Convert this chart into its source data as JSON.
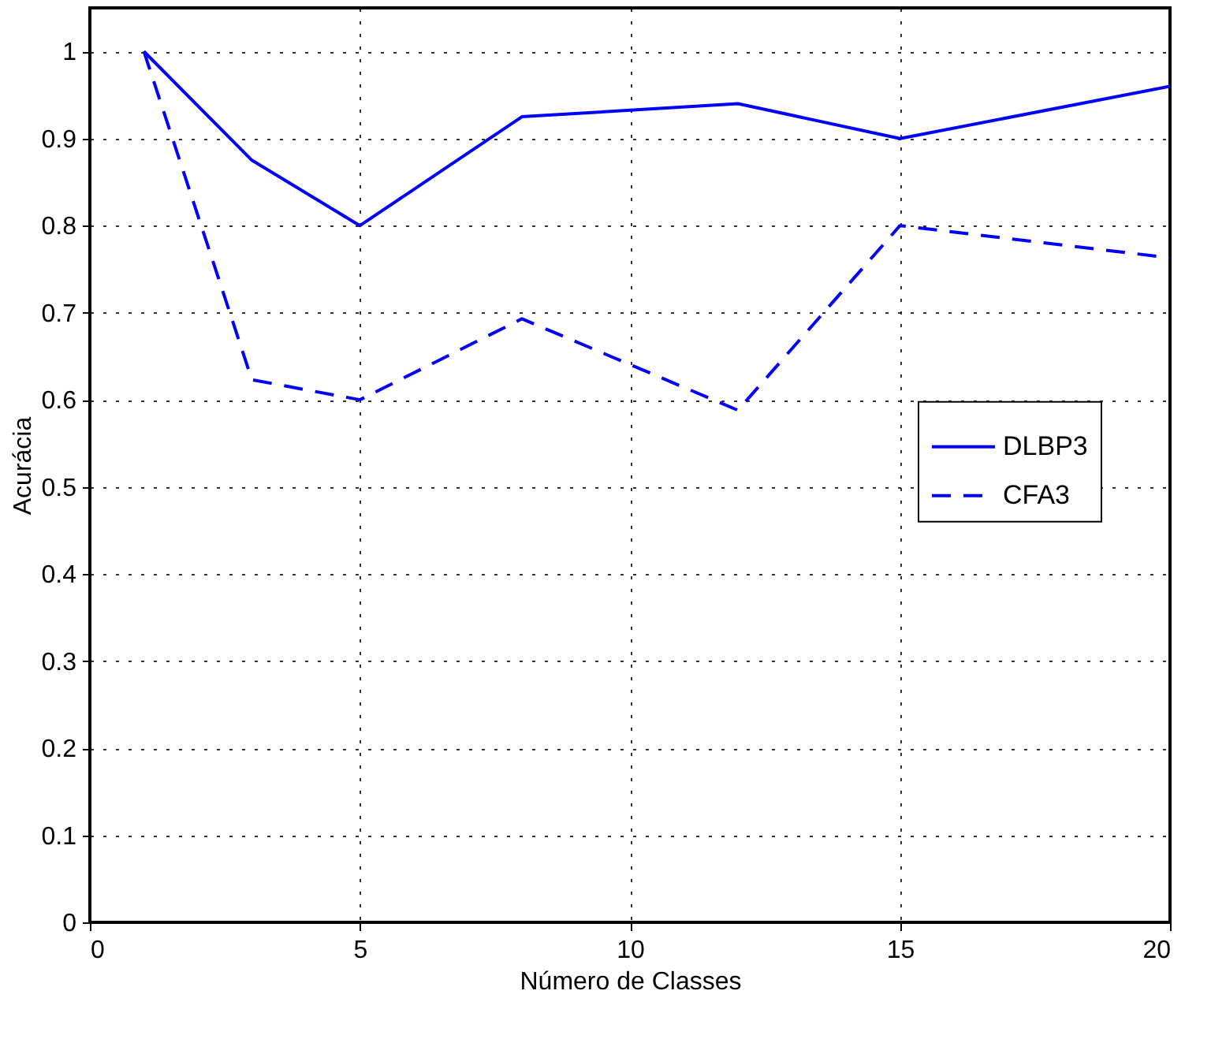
{
  "chart_data": {
    "type": "line",
    "xlabel": "Número de Classes",
    "ylabel": "Acurácia",
    "xlim": [
      0,
      20
    ],
    "xticks": [
      0,
      5,
      10,
      15,
      20
    ],
    "ylim": [
      0,
      1.05
    ],
    "yticks": [
      0,
      0.1,
      0.2,
      0.3,
      0.4,
      0.5,
      0.6,
      0.7,
      0.8,
      0.9,
      1
    ],
    "grid": true,
    "legend": "right",
    "marker": "none",
    "x": [
      1,
      3,
      5,
      8,
      12,
      15,
      20
    ],
    "series": [
      {
        "name": "DLBP3",
        "color": "#0000ff",
        "line_style": "solid",
        "values": [
          1.0,
          0.875,
          0.8,
          0.925,
          0.94,
          0.9,
          0.96
        ]
      },
      {
        "name": "CFA3",
        "color": "#0000ff",
        "line_style": "dashed",
        "values": [
          1.0,
          0.623,
          0.6,
          0.693,
          0.588,
          0.8,
          0.763
        ]
      }
    ]
  }
}
